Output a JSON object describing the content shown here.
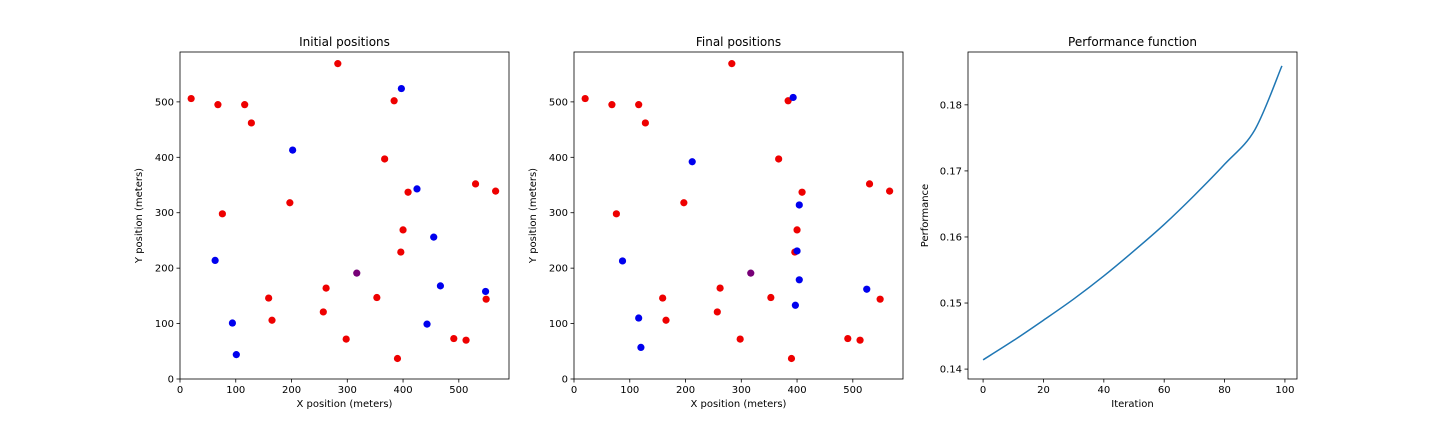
{
  "colors": {
    "red": "#ee0000",
    "blue": "#0000ee",
    "purple": "#770077",
    "line": "#1f77b4",
    "axis": "#000000"
  },
  "chart_data": [
    {
      "type": "scatter",
      "title": "Initial positions",
      "xlabel": "X position (meters)",
      "ylabel": "Y position (meters)",
      "xlim": [
        0,
        590
      ],
      "ylim": [
        0,
        590
      ],
      "xticks": [
        0,
        100,
        200,
        300,
        400,
        500
      ],
      "yticks": [
        0,
        100,
        200,
        300,
        400,
        500
      ],
      "grid": false,
      "series": [
        {
          "color": "red",
          "points": [
            [
              20,
              506
            ],
            [
              68,
              495
            ],
            [
              116,
              495
            ],
            [
              128,
              462
            ],
            [
              283,
              569
            ],
            [
              384,
              502
            ],
            [
              367,
              397
            ],
            [
              530,
              352
            ],
            [
              566,
              339
            ],
            [
              409,
              337
            ],
            [
              76,
              298
            ],
            [
              197,
              318
            ],
            [
              400,
              269
            ],
            [
              396,
              229
            ],
            [
              159,
              146
            ],
            [
              262,
              164
            ],
            [
              353,
              147
            ],
            [
              549,
              144
            ],
            [
              165,
              106
            ],
            [
              257,
              121
            ],
            [
              298,
              72
            ],
            [
              491,
              73
            ],
            [
              513,
              70
            ],
            [
              390,
              37
            ]
          ]
        },
        {
          "color": "blue",
          "points": [
            [
              397,
              524
            ],
            [
              202,
              413
            ],
            [
              425,
              343
            ],
            [
              455,
              256
            ],
            [
              63,
              214
            ],
            [
              467,
              168
            ],
            [
              548,
              158
            ],
            [
              94,
              101
            ],
            [
              443,
              99
            ],
            [
              101,
              44
            ]
          ]
        },
        {
          "color": "purple",
          "points": [
            [
              317,
              191
            ]
          ]
        }
      ]
    },
    {
      "type": "scatter",
      "title": "Final positions",
      "xlabel": "X position (meters)",
      "ylabel": "Y position (meters)",
      "xlim": [
        0,
        590
      ],
      "ylim": [
        0,
        590
      ],
      "xticks": [
        0,
        100,
        200,
        300,
        400,
        500
      ],
      "yticks": [
        0,
        100,
        200,
        300,
        400,
        500
      ],
      "grid": false,
      "series": [
        {
          "color": "red",
          "points": [
            [
              20,
              506
            ],
            [
              68,
              495
            ],
            [
              116,
              495
            ],
            [
              128,
              462
            ],
            [
              283,
              569
            ],
            [
              384,
              502
            ],
            [
              367,
              397
            ],
            [
              530,
              352
            ],
            [
              566,
              339
            ],
            [
              409,
              337
            ],
            [
              76,
              298
            ],
            [
              197,
              318
            ],
            [
              400,
              269
            ],
            [
              396,
              229
            ],
            [
              159,
              146
            ],
            [
              262,
              164
            ],
            [
              353,
              147
            ],
            [
              549,
              144
            ],
            [
              165,
              106
            ],
            [
              257,
              121
            ],
            [
              298,
              72
            ],
            [
              491,
              73
            ],
            [
              513,
              70
            ],
            [
              390,
              37
            ]
          ]
        },
        {
          "color": "blue",
          "points": [
            [
              393,
              508
            ],
            [
              212,
              392
            ],
            [
              404,
              314
            ],
            [
              400,
              231
            ],
            [
              87,
              213
            ],
            [
              404,
              179
            ],
            [
              525,
              162
            ],
            [
              397,
              133
            ],
            [
              116,
              110
            ],
            [
              120,
              57
            ]
          ]
        },
        {
          "color": "purple",
          "points": [
            [
              317,
              191
            ]
          ]
        }
      ]
    },
    {
      "type": "line",
      "title": "Performance function",
      "xlabel": "Iteration",
      "ylabel": "Performance",
      "xlim": [
        -5,
        104
      ],
      "ylim": [
        0.1385,
        0.188
      ],
      "xticks": [
        0,
        20,
        40,
        60,
        80,
        100
      ],
      "yticks": [
        0.14,
        0.15,
        0.16,
        0.17,
        0.18
      ],
      "grid": false,
      "series": [
        {
          "color": "line",
          "x": [
            0,
            10,
            20,
            30,
            40,
            50,
            60,
            70,
            80,
            90,
            99
          ],
          "y": [
            0.1414,
            0.1443,
            0.1474,
            0.1506,
            0.1541,
            0.1579,
            0.1619,
            0.1663,
            0.171,
            0.1762,
            0.1859
          ]
        }
      ]
    }
  ]
}
